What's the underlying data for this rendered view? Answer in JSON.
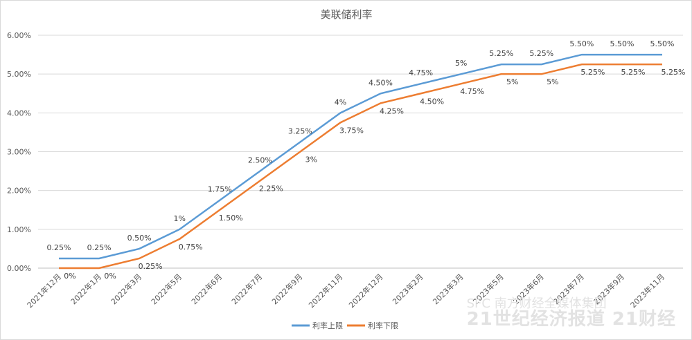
{
  "chart_data": {
    "type": "line",
    "title": "美联储利率",
    "categories": [
      "2021年12月",
      "2022年1月",
      "2022年3月",
      "2022年5月",
      "2022年6月",
      "2022年7月",
      "2022年9月",
      "2022年11月",
      "2022年12月",
      "2023年2月",
      "2023年3月",
      "2023年5月",
      "2023年6月",
      "2023年7月",
      "2023年9月",
      "2023年11月"
    ],
    "series": [
      {
        "name": "利率上限",
        "color": "#5b9bd5",
        "values": [
          0.25,
          0.25,
          0.5,
          1,
          1.75,
          2.5,
          3.25,
          4,
          4.5,
          4.75,
          5,
          5.25,
          5.25,
          5.5,
          5.5,
          5.5
        ],
        "labels": [
          "0.25%",
          "0.25%",
          "0.50%",
          "1%",
          "1.75%",
          "2.50%",
          "3.25%",
          "4%",
          "4.50%",
          "4.75%",
          "5%",
          "5.25%",
          "5.25%",
          "5.50%",
          "5.50%",
          "5.50%"
        ]
      },
      {
        "name": "利率下限",
        "color": "#ed7d31",
        "values": [
          0,
          0,
          0.25,
          0.75,
          1.5,
          2.25,
          3,
          3.75,
          4.25,
          4.5,
          4.75,
          5,
          5,
          5.25,
          5.25,
          5.25
        ],
        "labels": [
          "0%",
          "0%",
          "0.25%",
          "0.75%",
          "1.50%",
          "2.25%",
          "3%",
          "3.75%",
          "4.25%",
          "4.50%",
          "4.75%",
          "5%",
          "5%",
          "5.25%",
          "5.25%",
          "5.25%"
        ]
      }
    ],
    "ylim": [
      0,
      6
    ],
    "yticks": [
      "0.00%",
      "1.00%",
      "2.00%",
      "3.00%",
      "4.00%",
      "5.00%",
      "6.00%"
    ],
    "grid": true,
    "legend": "bottom"
  },
  "watermark": {
    "line1": "SFC 南方财经全媒体集团",
    "line2": "21世纪经济报道 21财经"
  }
}
